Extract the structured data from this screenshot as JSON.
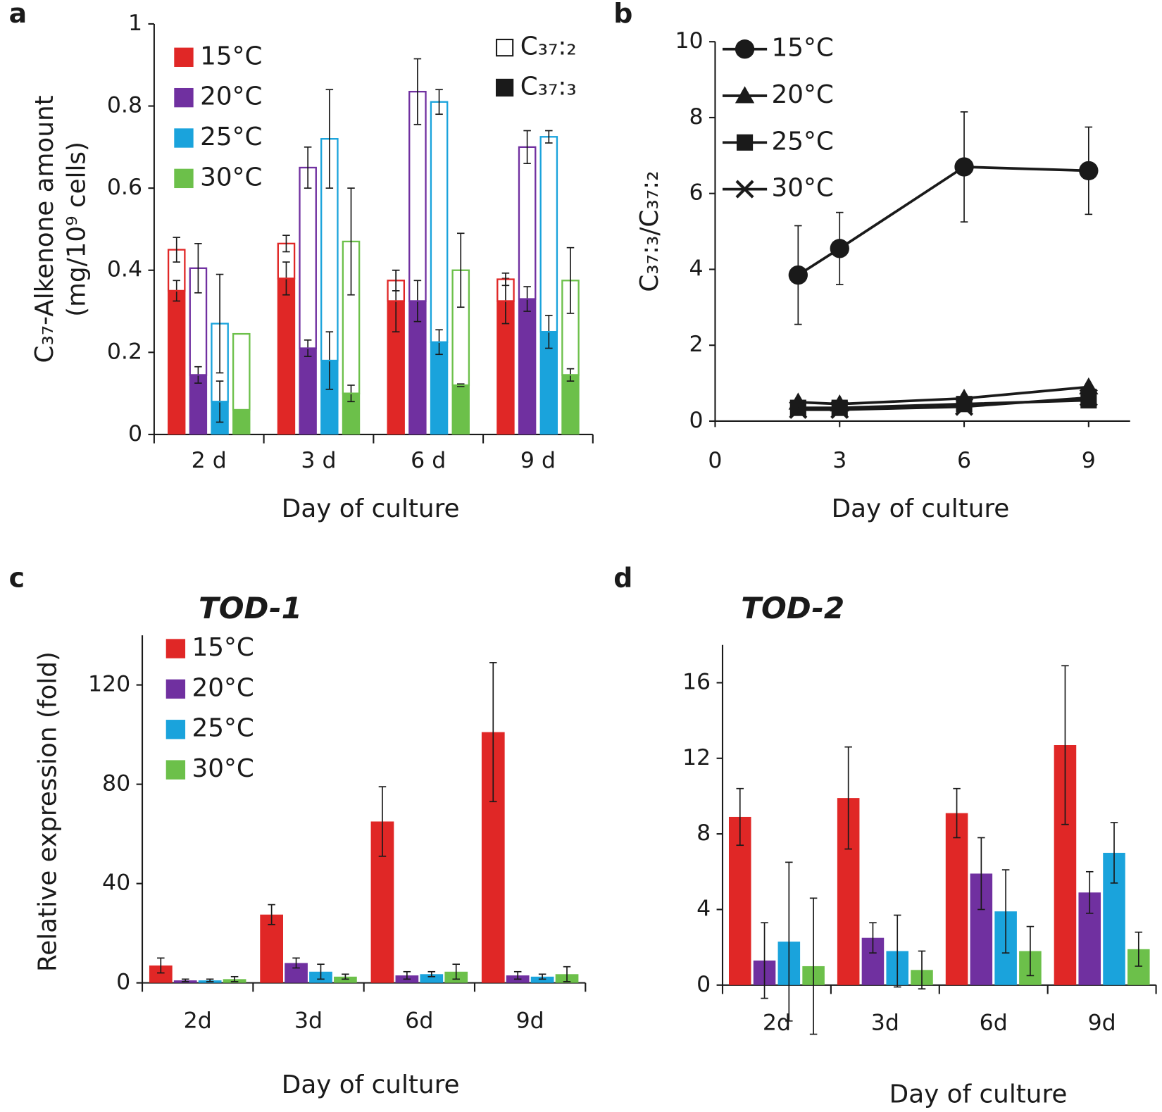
{
  "chart_data": [
    {
      "type": "stacked_bar",
      "panel_label": "a",
      "xlabel": "Day of culture",
      "ylabel": [
        "C₃₇-Alkenone amount",
        "(mg/10⁹ cells)"
      ],
      "categories": [
        "2 d",
        "3 d",
        "6 d",
        "9 d"
      ],
      "ylim": [
        0,
        1
      ],
      "yticks": [
        0,
        0.2,
        0.4,
        0.6,
        0.8,
        1
      ],
      "legend": "upper left",
      "stack_names": [
        "C₃₇:₃",
        "C₃₇:₂"
      ],
      "stack_legend": "upper right",
      "series": [
        {
          "name": "15°C",
          "color": "#e02726",
          "segments": [
            {
              "values": [
                0.35,
                0.38,
                0.325,
                0.325
              ],
              "errors": [
                0.025,
                0.04,
                0.075,
                0.055
              ]
            },
            {
              "values": [
                0.1,
                0.085,
                0.05,
                0.053
              ],
              "errors": [
                0.03,
                0.02,
                0.025,
                0.015
              ]
            }
          ]
        },
        {
          "name": "20°C",
          "color": "#7030a0",
          "segments": [
            {
              "values": [
                0.145,
                0.21,
                0.325,
                0.33
              ],
              "errors": [
                0.02,
                0.02,
                0.05,
                0.03
              ]
            },
            {
              "values": [
                0.26,
                0.44,
                0.51,
                0.37
              ],
              "errors": [
                0.06,
                0.05,
                0.08,
                0.04
              ]
            }
          ]
        },
        {
          "name": "25°C",
          "color": "#1aa3dc",
          "segments": [
            {
              "values": [
                0.08,
                0.18,
                0.225,
                0.25
              ],
              "errors": [
                0.05,
                0.07,
                0.03,
                0.04
              ]
            },
            {
              "values": [
                0.19,
                0.54,
                0.585,
                0.475
              ],
              "errors": [
                0.12,
                0.12,
                0.03,
                0.015
              ]
            }
          ]
        },
        {
          "name": "30°C",
          "color": "#6cc04a",
          "segments": [
            {
              "values": [
                0.06,
                0.1,
                0.12,
                0.145
              ],
              "errors": [
                null,
                0.02,
                0.003,
                0.015
              ]
            },
            {
              "values": [
                0.185,
                0.37,
                0.28,
                0.23
              ],
              "errors": [
                null,
                0.13,
                0.09,
                0.08
              ]
            }
          ]
        }
      ]
    },
    {
      "type": "line",
      "panel_label": "b",
      "xlabel": "Day of culture",
      "ylabel": "C₃₇:₃/C₃₇:₂",
      "xlim": [
        0,
        10
      ],
      "xticks": [
        0,
        3,
        6,
        9
      ],
      "ylim": [
        0,
        10
      ],
      "yticks": [
        0,
        2,
        4,
        6,
        8,
        10
      ],
      "legend": "upper left",
      "series": [
        {
          "name": "15°C",
          "color": "#1a1a1a",
          "marker": "circle",
          "x": [
            2,
            3,
            6,
            9
          ],
          "values": [
            3.85,
            4.55,
            6.7,
            6.6
          ],
          "errors": [
            1.3,
            0.95,
            1.45,
            1.15
          ]
        },
        {
          "name": "20°C",
          "color": "#1a1a1a",
          "marker": "triangle",
          "x": [
            2,
            3,
            6,
            9
          ],
          "values": [
            0.5,
            0.45,
            0.6,
            0.9
          ]
        },
        {
          "name": "25°C",
          "color": "#1a1a1a",
          "marker": "square",
          "x": [
            2,
            3,
            6,
            9
          ],
          "values": [
            0.35,
            0.35,
            0.45,
            0.55
          ]
        },
        {
          "name": "30°C",
          "color": "#1a1a1a",
          "marker": "x",
          "x": [
            2,
            3,
            6,
            9
          ],
          "values": [
            0.3,
            0.3,
            0.38,
            0.62
          ]
        }
      ]
    },
    {
      "type": "bar",
      "panel_label": "c",
      "title": "TOD-1",
      "xlabel": "Day of culture",
      "ylabel": "Relative expression (fold)",
      "categories": [
        "2d",
        "3d",
        "6d",
        "9d"
      ],
      "ylim": [
        0,
        140
      ],
      "yticks": [
        0,
        40,
        80,
        120
      ],
      "legend": "upper left",
      "series": [
        {
          "name": "15°C",
          "color": "#e02726",
          "values": [
            7,
            27.5,
            65,
            101
          ],
          "errors": [
            3,
            4,
            14,
            28
          ]
        },
        {
          "name": "20°C",
          "color": "#7030a0",
          "values": [
            1,
            8,
            3,
            3
          ],
          "errors": [
            0.5,
            2,
            1.5,
            1.5
          ]
        },
        {
          "name": "25°C",
          "color": "#1aa3dc",
          "values": [
            1,
            4.5,
            3.5,
            2.5
          ],
          "errors": [
            0.5,
            3,
            1,
            1
          ]
        },
        {
          "name": "30°C",
          "color": "#6cc04a",
          "values": [
            1.5,
            2.5,
            4.5,
            3.5
          ],
          "errors": [
            1,
            1,
            3,
            3
          ]
        }
      ]
    },
    {
      "type": "bar",
      "panel_label": "d",
      "title": "TOD-2",
      "xlabel": "Day of culture",
      "categories": [
        "2d",
        "3d",
        "6d",
        "9d"
      ],
      "ylim": [
        0,
        18
      ],
      "yticks": [
        0,
        4,
        8,
        12,
        16
      ],
      "series": [
        {
          "name": "15°C",
          "color": "#e02726",
          "values": [
            8.9,
            9.9,
            9.1,
            12.7
          ],
          "errors": [
            1.5,
            2.7,
            1.3,
            4.2
          ]
        },
        {
          "name": "20°C",
          "color": "#7030a0",
          "values": [
            1.3,
            2.5,
            5.9,
            4.9
          ],
          "errors": [
            2,
            0.8,
            1.9,
            1.1
          ]
        },
        {
          "name": "25°C",
          "color": "#1aa3dc",
          "values": [
            2.3,
            1.8,
            3.9,
            7
          ],
          "errors": [
            4.2,
            1.9,
            2.2,
            1.6
          ]
        },
        {
          "name": "30°C",
          "color": "#6cc04a",
          "values": [
            1,
            0.8,
            1.8,
            1.9
          ],
          "errors": [
            3.6,
            1,
            1.3,
            0.9
          ]
        }
      ]
    }
  ]
}
